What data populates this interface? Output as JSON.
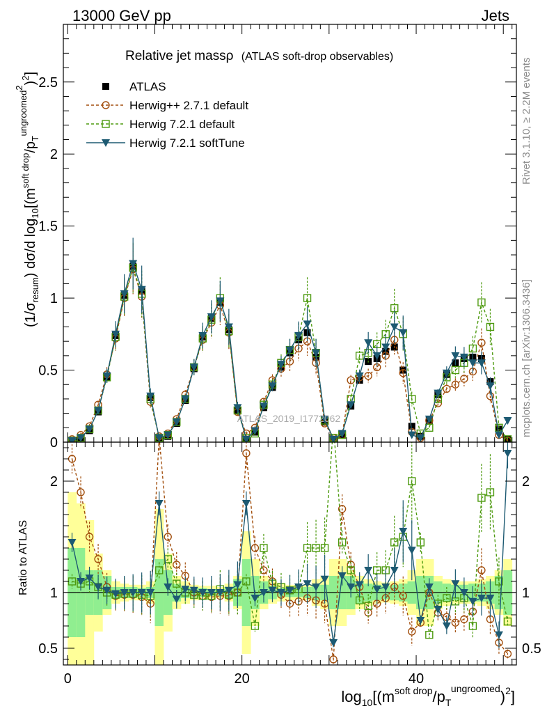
{
  "header": {
    "left": "13000 GeV pp",
    "right": "Jets"
  },
  "side_labels": {
    "rivet": "Rivet 3.1.10, ≥ 2.2M events",
    "mcplots": "mcplots.cern.ch [arXiv:1306.3436]"
  },
  "watermark": "ATLAS_2019_I1772062",
  "chart_data": {
    "type": "line",
    "title": "Relative jet mass",
    "title_symbol": "ρ",
    "title_note": "(ATLAS soft-drop observables)",
    "ylabel_main": "(1/σresum) dσ/d log10[(msoft drop/pTungroomed)2]",
    "ylabel_ratio": "Ratio to ATLAS",
    "xlabel": "log10[(msoft drop/pTungroomed)2]",
    "xlim": [
      -0.5,
      51.5
    ],
    "ylim_main": [
      0,
      2.9
    ],
    "ylim_ratio": [
      0.35,
      2.35
    ],
    "x_ticks": [
      "0",
      "20",
      "40"
    ],
    "y_ticks_main": [
      "0",
      "0.5",
      "1",
      "1.5",
      "2",
      "2.5"
    ],
    "y_ticks_ratio": [
      "0.5",
      "1",
      "2"
    ],
    "legend_position": "top-left",
    "x": [
      0.5,
      1.5,
      2.5,
      3.5,
      4.5,
      5.5,
      6.5,
      7.5,
      8.5,
      9.5,
      10.5,
      11.5,
      12.5,
      13.5,
      14.5,
      15.5,
      16.5,
      17.5,
      18.5,
      19.5,
      20.5,
      21.5,
      22.5,
      23.5,
      24.5,
      25.5,
      26.5,
      27.5,
      28.5,
      29.5,
      30.5,
      31.5,
      32.5,
      33.5,
      34.5,
      35.5,
      36.5,
      37.5,
      38.5,
      39.5,
      40.5,
      41.5,
      42.5,
      43.5,
      44.5,
      45.5,
      46.5,
      47.5,
      48.5,
      49.5,
      50.5
    ],
    "series": [
      {
        "name": "ATLAS",
        "values": [
          0.01,
          0.03,
          0.08,
          0.21,
          0.45,
          0.74,
          1.02,
          1.22,
          1.05,
          0.31,
          0.02,
          0.04,
          0.13,
          0.29,
          0.51,
          0.73,
          0.86,
          0.97,
          0.78,
          0.22,
          0.02,
          0.07,
          0.24,
          0.38,
          0.52,
          0.62,
          0.71,
          0.76,
          0.59,
          0.14,
          0.02,
          0.05,
          0.25,
          0.43,
          0.56,
          0.58,
          0.63,
          0.66,
          0.5,
          0.11,
          0.04,
          0.15,
          0.33,
          0.47,
          0.55,
          0.58,
          0.59,
          0.58,
          0.42,
          0.09,
          0.02
        ],
        "color": "#000000"
      },
      {
        "name": "Herwig++ 2.7.1 default",
        "values": [
          0.02,
          0.05,
          0.11,
          0.26,
          0.47,
          0.72,
          1.0,
          1.2,
          1.01,
          0.28,
          0.04,
          0.06,
          0.16,
          0.33,
          0.52,
          0.71,
          0.83,
          0.95,
          0.76,
          0.21,
          0.06,
          0.1,
          0.28,
          0.43,
          0.51,
          0.56,
          0.65,
          0.7,
          0.55,
          0.13,
          0.03,
          0.05,
          0.43,
          0.45,
          0.46,
          0.52,
          0.6,
          0.71,
          0.48,
          0.07,
          0.03,
          0.15,
          0.27,
          0.37,
          0.4,
          0.44,
          0.49,
          0.69,
          0.32,
          0.05,
          0.01
        ],
        "ratio": [
          2.2,
          1.9,
          1.5,
          1.3,
          1.05,
          0.97,
          0.98,
          0.98,
          0.96,
          0.9,
          2.4,
          1.5,
          1.25,
          1.15,
          1.0,
          0.97,
          0.96,
          0.97,
          0.97,
          1.0,
          2.25,
          1.4,
          1.2,
          1.1,
          0.98,
          0.9,
          0.92,
          0.95,
          0.93,
          0.9,
          0.4,
          1.75,
          1.25,
          1.05,
          0.82,
          0.9,
          0.95,
          1.05,
          0.97,
          0.65,
          0.73,
          1.0,
          0.82,
          0.78,
          0.73,
          0.76,
          0.83,
          1.2,
          0.76,
          0.55,
          0.45
        ],
        "color": "#a24f0e"
      },
      {
        "name": "Herwig 7.2.1 default",
        "values": [
          0.01,
          0.03,
          0.09,
          0.22,
          0.45,
          0.73,
          1.01,
          1.21,
          1.03,
          0.3,
          0.03,
          0.05,
          0.14,
          0.3,
          0.52,
          0.72,
          0.85,
          1.0,
          0.77,
          0.22,
          0.03,
          0.06,
          0.26,
          0.4,
          0.55,
          0.64,
          0.73,
          1.0,
          0.62,
          0.15,
          0.03,
          0.05,
          0.3,
          0.6,
          0.62,
          0.68,
          0.75,
          0.93,
          0.75,
          0.3,
          0.06,
          0.1,
          0.3,
          0.45,
          0.5,
          0.55,
          0.65,
          0.97,
          0.8,
          0.1,
          0.02
        ],
        "ratio": [
          1.1,
          1.08,
          1.1,
          1.05,
          1.0,
          0.98,
          0.99,
          0.99,
          0.98,
          0.97,
          1.2,
          1.3,
          1.08,
          1.0,
          0.98,
          0.97,
          0.97,
          1.03,
          0.98,
          1.0,
          1.1,
          0.7,
          1.4,
          1.08,
          1.05,
          1.02,
          1.03,
          1.4,
          1.4,
          1.4,
          2.5,
          1.45,
          1.2,
          0.93,
          0.88,
          1.2,
          1.2,
          1.45,
          1.5,
          2.0,
          1.45,
          0.62,
          0.9,
          0.95,
          0.92,
          0.95,
          0.7,
          1.85,
          1.9,
          1.1,
          0.74
        ],
        "color": "#4d9a0f"
      },
      {
        "name": "Herwig 7.2.1 softTune",
        "values": [
          0.01,
          0.03,
          0.09,
          0.22,
          0.46,
          0.75,
          1.03,
          1.24,
          1.06,
          0.32,
          0.03,
          0.05,
          0.14,
          0.3,
          0.52,
          0.74,
          0.87,
          0.98,
          0.8,
          0.24,
          0.02,
          0.08,
          0.25,
          0.39,
          0.54,
          0.64,
          0.74,
          0.82,
          0.62,
          0.16,
          0.02,
          0.06,
          0.26,
          0.46,
          0.69,
          0.6,
          0.66,
          0.8,
          0.76,
          0.05,
          0.03,
          0.16,
          0.34,
          0.48,
          0.6,
          0.59,
          0.55,
          0.55,
          0.39,
          0.05,
          0.15
        ],
        "ratio": [
          1.45,
          1.1,
          1.13,
          1.05,
          1.02,
          0.99,
          1.0,
          1.0,
          1.0,
          1.0,
          1.8,
          1.05,
          0.94,
          1.03,
          1.02,
          1.0,
          1.0,
          1.0,
          1.02,
          1.07,
          1.8,
          0.95,
          1.0,
          1.02,
          1.0,
          1.02,
          1.05,
          1.08,
          1.05,
          1.12,
          0.55,
          1.15,
          1.05,
          1.07,
          1.2,
          1.03,
          1.05,
          1.2,
          1.55,
          1.38,
          0.75,
          1.05,
          0.85,
          0.7,
          1.08,
          1.0,
          0.92,
          0.95,
          0.95,
          0.62,
          2.25
        ],
        "color": "#1d5a72"
      }
    ],
    "band_data": {
      "inner_halfwidth": [
        0.4,
        0.4,
        0.2,
        0.2,
        0.15,
        0.05,
        0.05,
        0.05,
        0.04,
        0.05,
        0.3,
        0.2,
        0.08,
        0.05,
        0.04,
        0.04,
        0.03,
        0.03,
        0.05,
        0.12,
        0.3,
        0.15,
        0.1,
        0.06,
        0.04,
        0.04,
        0.04,
        0.05,
        0.07,
        0.07,
        0.15,
        0.15,
        0.15,
        0.1,
        0.08,
        0.07,
        0.06,
        0.07,
        0.08,
        0.1,
        0.15,
        0.15,
        0.1,
        0.08,
        0.07,
        0.07,
        0.08,
        0.08,
        0.1,
        0.15,
        0.2
      ],
      "outer_halfwidth": [
        0.9,
        0.8,
        0.65,
        0.35,
        0.2,
        0.1,
        0.08,
        0.07,
        0.07,
        0.1,
        0.75,
        0.35,
        0.15,
        0.1,
        0.07,
        0.06,
        0.06,
        0.05,
        0.08,
        0.15,
        0.55,
        0.3,
        0.15,
        0.1,
        0.08,
        0.07,
        0.06,
        0.07,
        0.12,
        0.15,
        0.3,
        0.3,
        0.2,
        0.15,
        0.12,
        0.1,
        0.09,
        0.1,
        0.12,
        0.2,
        0.3,
        0.3,
        0.15,
        0.12,
        0.1,
        0.1,
        0.1,
        0.12,
        0.15,
        0.2,
        0.3
      ],
      "inner_color": "#90ee90",
      "outer_color": "#ffff99"
    }
  }
}
